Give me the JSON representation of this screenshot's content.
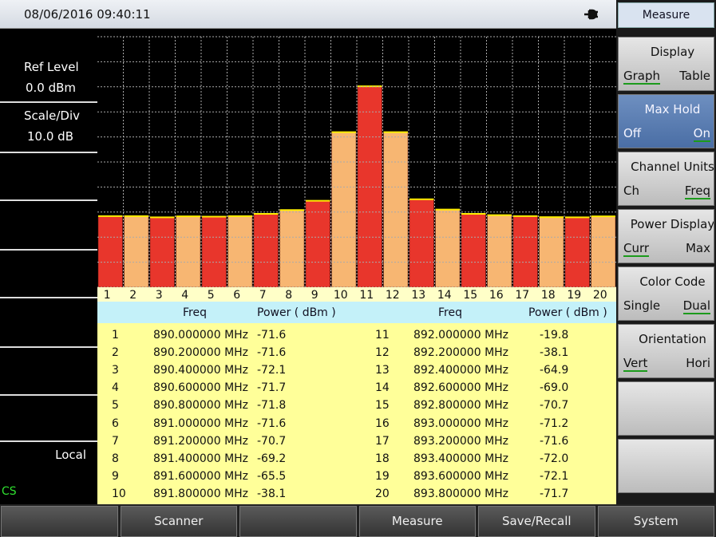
{
  "header": {
    "datetime": "08/06/2016 09:40:11"
  },
  "left_panel": {
    "ref_level_label": "Ref Level",
    "ref_level": "0.0 dBm",
    "scale_label": "Scale/Div",
    "scale": "10.0 dB",
    "mode": "Local",
    "status": "CS"
  },
  "graph": {
    "channels": [
      1,
      2,
      3,
      4,
      5,
      6,
      7,
      8,
      9,
      10,
      11,
      12,
      13,
      14,
      15,
      16,
      17,
      18,
      19,
      20
    ]
  },
  "table": {
    "headers": [
      "Freq",
      "Power ( dBm )"
    ],
    "rows": [
      [
        1,
        "890.000000 MHz",
        "-71.6"
      ],
      [
        2,
        "890.200000 MHz",
        "-71.6"
      ],
      [
        3,
        "890.400000 MHz",
        "-72.1"
      ],
      [
        4,
        "890.600000 MHz",
        "-71.7"
      ],
      [
        5,
        "890.800000 MHz",
        "-71.8"
      ],
      [
        6,
        "891.000000 MHz",
        "-71.6"
      ],
      [
        7,
        "891.200000 MHz",
        "-70.7"
      ],
      [
        8,
        "891.400000 MHz",
        "-69.2"
      ],
      [
        9,
        "891.600000 MHz",
        "-65.5"
      ],
      [
        10,
        "891.800000 MHz",
        "-38.1"
      ],
      [
        11,
        "892.000000 MHz",
        "-19.8"
      ],
      [
        12,
        "892.200000 MHz",
        "-38.1"
      ],
      [
        13,
        "892.400000 MHz",
        "-64.9"
      ],
      [
        14,
        "892.600000 MHz",
        "-69.0"
      ],
      [
        15,
        "892.800000 MHz",
        "-70.7"
      ],
      [
        16,
        "893.000000 MHz",
        "-71.2"
      ],
      [
        17,
        "893.200000 MHz",
        "-71.6"
      ],
      [
        18,
        "893.400000 MHz",
        "-72.0"
      ],
      [
        19,
        "893.600000 MHz",
        "-72.1"
      ],
      [
        20,
        "893.800000 MHz",
        "-71.7"
      ]
    ]
  },
  "right_menu": {
    "title": "Measure",
    "highlighted": 1,
    "items": [
      {
        "label": "Display",
        "options": [
          "Graph",
          "Table"
        ],
        "selected": 0
      },
      {
        "label": "Max Hold",
        "options": [
          "Off",
          "On"
        ],
        "selected": 1
      },
      {
        "label": "Channel Units",
        "options": [
          "Ch",
          "Freq"
        ],
        "selected": 1
      },
      {
        "label": "Power Display",
        "options": [
          "Curr",
          "Max"
        ],
        "selected": 0
      },
      {
        "label": "Color Code",
        "options": [
          "Single",
          "Dual"
        ],
        "selected": 1
      },
      {
        "label": "Orientation",
        "options": [
          "Vert",
          "Hori"
        ],
        "selected": 0
      }
    ],
    "empty_slots": 2
  },
  "softkeys": [
    null,
    "Scanner",
    null,
    "Measure",
    "Save/Recall",
    "System"
  ]
}
